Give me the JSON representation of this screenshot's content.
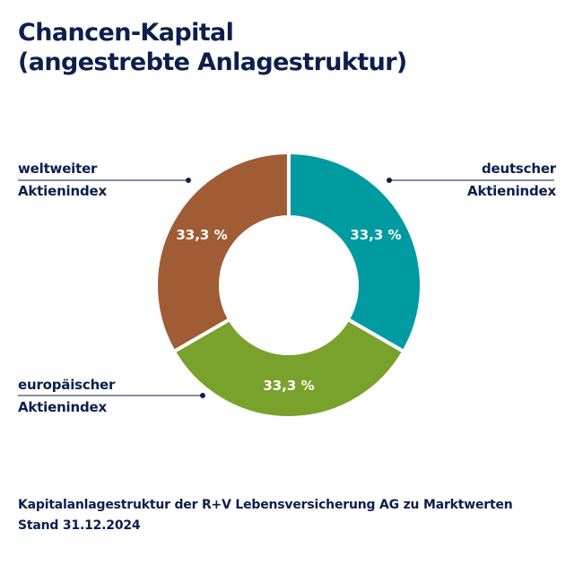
{
  "title": {
    "line1": "Chancen-Kapital",
    "line2": "(angestrebte Anlagestruktur)"
  },
  "chart_data": {
    "type": "pie",
    "variant": "donut",
    "title": "Chancen-Kapital (angestrebte Anlagestruktur)",
    "unit": "%",
    "slices": [
      {
        "label": "deutscher Aktienindex",
        "value": 33.3,
        "display": "33,3 %",
        "color": "#009aa1"
      },
      {
        "label": "europäischer Aktienindex",
        "value": 33.3,
        "display": "33,3 %",
        "color": "#79a22c"
      },
      {
        "label": "weltweiter Aktienindex",
        "value": 33.3,
        "display": "33,3 %",
        "color": "#a05c35"
      }
    ]
  },
  "callouts": {
    "de": {
      "line1": "deutscher",
      "line2": "Aktienindex"
    },
    "eu": {
      "line1": "europäischer",
      "line2": "Aktienindex"
    },
    "world": {
      "line1": "weltweiter",
      "line2": "Aktienindex"
    }
  },
  "colors": {
    "text": "#0c1f4c",
    "leader": "#0c1f4c"
  },
  "footer": {
    "line1": "Kapitalanlagestruktur der R+V Lebensversicherung AG zu Marktwerten",
    "line2": "Stand 31.12.2024"
  }
}
